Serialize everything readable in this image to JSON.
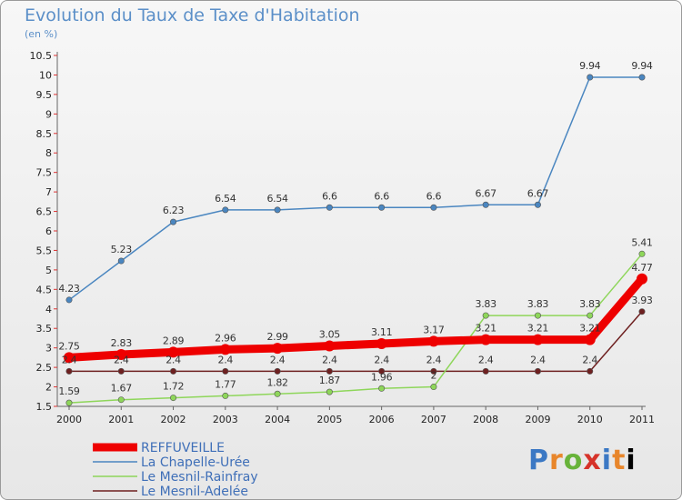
{
  "header": {
    "title": "Evolution du Taux de Taxe d'Habitation",
    "unit": "(en %)"
  },
  "logo": {
    "text": "Proxiti"
  },
  "colors": {
    "REFFUVEILLE": "#ee0000",
    "La Chapelle-Urée": "#4a86c0",
    "Le Mesnil-Rainfray": "#8ed65a",
    "Le Mesnil-Adelée": "#6e2020",
    "axis_text": "#222222",
    "legend_text": "#3f6fb8"
  },
  "chart_data": {
    "type": "line",
    "x": [
      "2000",
      "2001",
      "2002",
      "2003",
      "2004",
      "2005",
      "2006",
      "2007",
      "2008",
      "2009",
      "2010",
      "2011"
    ],
    "ylim": [
      1.5,
      10.5
    ],
    "yticks": [
      1.5,
      2,
      2.5,
      3,
      3.5,
      4,
      4.5,
      5,
      5.5,
      6,
      6.5,
      7,
      7.5,
      8,
      8.5,
      9,
      9.5,
      10,
      10.5
    ],
    "grid": false,
    "legend_position": "bottom-left",
    "series": [
      {
        "name": "REFFUVEILLE",
        "values": [
          2.75,
          2.83,
          2.89,
          2.96,
          2.99,
          3.05,
          3.11,
          3.17,
          3.21,
          3.21,
          3.21,
          4.77
        ],
        "labels": [
          "2.75",
          "2.83",
          "2.89",
          "2.96",
          "2.99",
          "3.05",
          "3.11",
          "3.17",
          "3.21",
          "3.21",
          "3.21",
          "4.77"
        ]
      },
      {
        "name": "La Chapelle-Urée",
        "values": [
          4.23,
          5.23,
          6.23,
          6.54,
          6.54,
          6.6,
          6.6,
          6.6,
          6.67,
          6.67,
          9.94,
          9.94
        ],
        "labels": [
          "4.23",
          "5.23",
          "6.23",
          "6.54",
          "6.54",
          "6.6",
          "6.6",
          "6.6",
          "6.67",
          "6.67",
          "9.94",
          "9.94"
        ]
      },
      {
        "name": "Le Mesnil-Rainfray",
        "values": [
          1.59,
          1.67,
          1.72,
          1.77,
          1.82,
          1.87,
          1.96,
          2,
          3.83,
          3.83,
          3.83,
          5.41
        ],
        "labels": [
          "1.59",
          "1.67",
          "1.72",
          "1.77",
          "1.82",
          "1.87",
          "1.96",
          "2",
          "3.83",
          "3.83",
          "3.83",
          "5.41"
        ]
      },
      {
        "name": "Le Mesnil-Adelée",
        "values": [
          2.4,
          2.4,
          2.4,
          2.4,
          2.4,
          2.4,
          2.4,
          2.4,
          2.4,
          2.4,
          2.4,
          3.93
        ],
        "labels": [
          "2.4",
          "2.4",
          "2.4",
          "2.4",
          "2.4",
          "2.4",
          "2.4",
          "2.4",
          "2.4",
          "2.4",
          "2.4",
          "3.93"
        ]
      }
    ]
  }
}
